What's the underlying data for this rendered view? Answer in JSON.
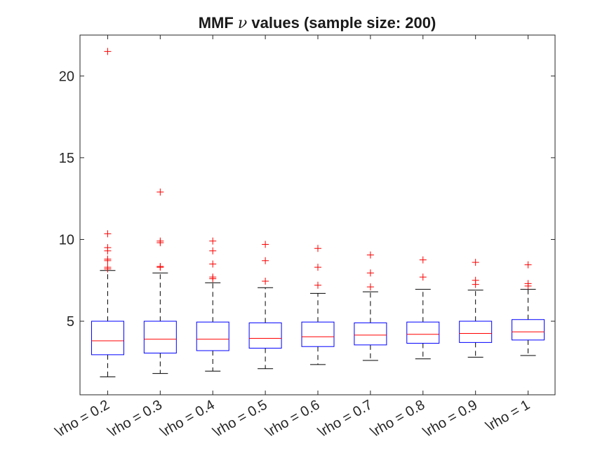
{
  "chart_data": {
    "type": "boxplot",
    "title_prefix": "MMF ",
    "title_symbol": "ν",
    "title_suffix": " values (sample size: 200)",
    "categories": [
      "\\rho = 0.2",
      "\\rho = 0.3",
      "\\rho = 0.4",
      "\\rho = 0.5",
      "\\rho = 0.6",
      "\\rho = 0.7",
      "\\rho = 0.8",
      "\\rho = 0.9",
      "\\rho = 1"
    ],
    "yticks": [
      5,
      10,
      15,
      20
    ],
    "ylim": [
      0.5,
      22.5
    ],
    "grid": false,
    "colors": {
      "box": "#0000ff",
      "median": "#ff0000",
      "whisker": "#000000",
      "outlier": "#ff0000",
      "axis": "#262626"
    },
    "boxes": [
      {
        "whisker_low": 1.6,
        "q1": 2.95,
        "median": 3.8,
        "q3": 5.0,
        "whisker_high": 8.1,
        "outliers": [
          8.2,
          8.3,
          8.7,
          8.8,
          9.3,
          9.5,
          10.35,
          21.5
        ]
      },
      {
        "whisker_low": 1.8,
        "q1": 3.05,
        "median": 3.9,
        "q3": 5.0,
        "whisker_high": 7.95,
        "outliers": [
          8.3,
          8.35,
          9.8,
          9.9,
          12.9
        ]
      },
      {
        "whisker_low": 1.95,
        "q1": 3.2,
        "median": 3.9,
        "q3": 4.95,
        "whisker_high": 7.35,
        "outliers": [
          7.6,
          7.7,
          8.5,
          9.3,
          9.9
        ]
      },
      {
        "whisker_low": 2.1,
        "q1": 3.35,
        "median": 3.95,
        "q3": 4.9,
        "whisker_high": 7.05,
        "outliers": [
          7.45,
          8.7,
          9.7
        ]
      },
      {
        "whisker_low": 2.35,
        "q1": 3.45,
        "median": 4.05,
        "q3": 4.95,
        "whisker_high": 6.7,
        "outliers": [
          7.2,
          8.3,
          9.45
        ]
      },
      {
        "whisker_low": 2.6,
        "q1": 3.55,
        "median": 4.15,
        "q3": 4.9,
        "whisker_high": 6.8,
        "outliers": [
          7.1,
          7.95,
          9.05
        ]
      },
      {
        "whisker_low": 2.7,
        "q1": 3.65,
        "median": 4.2,
        "q3": 4.95,
        "whisker_high": 6.95,
        "outliers": [
          7.7,
          8.75
        ]
      },
      {
        "whisker_low": 2.8,
        "q1": 3.7,
        "median": 4.25,
        "q3": 5.0,
        "whisker_high": 6.9,
        "outliers": [
          7.25,
          7.5,
          8.6
        ]
      },
      {
        "whisker_low": 2.9,
        "q1": 3.85,
        "median": 4.35,
        "q3": 5.1,
        "whisker_high": 6.95,
        "outliers": [
          7.15,
          7.3,
          8.45
        ]
      }
    ]
  }
}
